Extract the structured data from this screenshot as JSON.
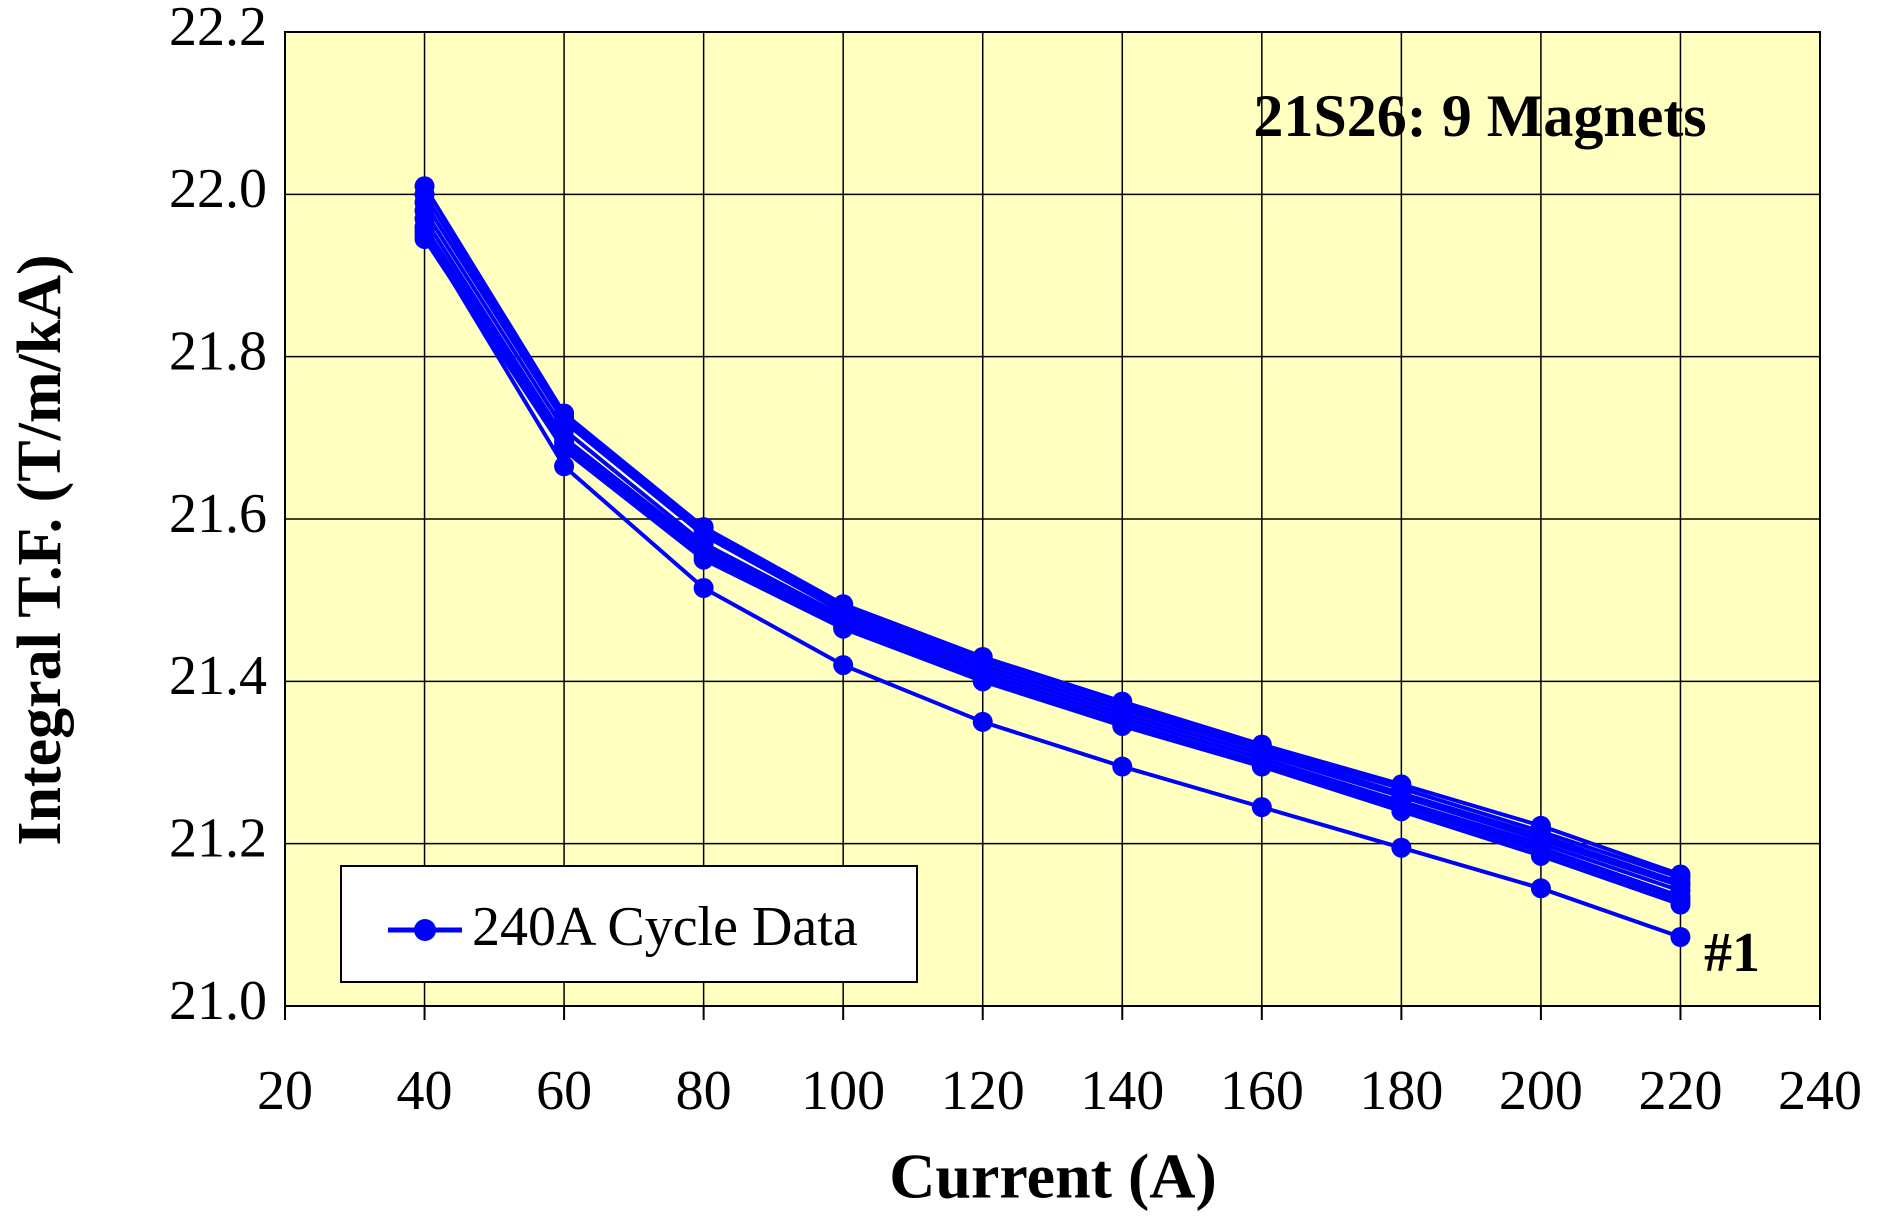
{
  "chart_data": {
    "type": "line",
    "title": "21S26: 9 Magnets",
    "xlabel": "Current (A)",
    "ylabel": "Integral T.F. (T/m/kA)",
    "legend_label": "240A Cycle Data",
    "legend": "lower left",
    "annotation": "#1",
    "color": "#0000ff",
    "background": "#ffffc0",
    "grid": true,
    "x": [
      40,
      60,
      80,
      100,
      120,
      140,
      160,
      180,
      200,
      220
    ],
    "series": [
      {
        "values": [
          21.95,
          21.665,
          21.515,
          21.42,
          21.35,
          21.295,
          21.245,
          21.195,
          21.145,
          21.085
        ]
      },
      {
        "values": [
          22.01,
          21.73,
          21.59,
          21.495,
          21.43,
          21.375,
          21.322,
          21.273,
          21.222,
          21.162
        ]
      },
      {
        "values": [
          22.0,
          21.725,
          21.585,
          21.49,
          21.425,
          21.37,
          21.318,
          21.268,
          21.215,
          21.158
        ]
      },
      {
        "values": [
          21.99,
          21.72,
          21.58,
          21.485,
          21.42,
          21.365,
          21.315,
          21.262,
          21.21,
          21.152
        ]
      },
      {
        "values": [
          21.98,
          21.71,
          21.57,
          21.48,
          21.415,
          21.36,
          21.31,
          21.258,
          21.205,
          21.148
        ]
      },
      {
        "values": [
          21.97,
          21.7,
          21.565,
          21.475,
          21.41,
          21.355,
          21.305,
          21.252,
          21.2,
          21.142
        ]
      },
      {
        "values": [
          21.96,
          21.695,
          21.56,
          21.47,
          21.405,
          21.35,
          21.3,
          21.248,
          21.195,
          21.135
        ]
      },
      {
        "values": [
          21.955,
          21.69,
          21.555,
          21.468,
          21.402,
          21.347,
          21.297,
          21.245,
          21.19,
          21.13
        ]
      },
      {
        "values": [
          21.945,
          21.685,
          21.55,
          21.465,
          21.4,
          21.345,
          21.295,
          21.24,
          21.185,
          21.125
        ]
      }
    ],
    "xlim": [
      20,
      240
    ],
    "xticks": [
      20,
      40,
      60,
      80,
      100,
      120,
      140,
      160,
      180,
      200,
      220,
      240
    ],
    "ylim": [
      21.0,
      22.2
    ],
    "yticks": [
      {
        "value": 21.0,
        "label": "21.0"
      },
      21.2,
      21.4,
      21.6,
      21.8,
      {
        "value": 22.0,
        "label": "22.0"
      },
      22.2
    ]
  }
}
